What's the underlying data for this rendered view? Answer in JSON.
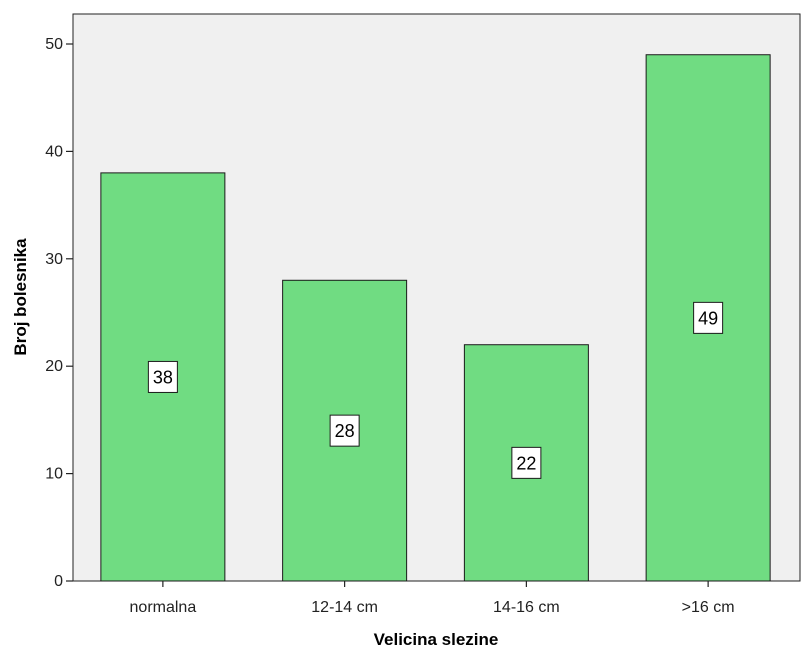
{
  "chart_data": {
    "type": "bar",
    "categories": [
      "normalna",
      "12-14 cm",
      "14-16 cm",
      ">16 cm"
    ],
    "values": [
      38,
      28,
      22,
      49
    ],
    "data_labels": [
      "38",
      "28",
      "22",
      "49"
    ],
    "xlabel": "Velicina slezine",
    "ylabel": "Broj bolesnika",
    "ylim": [
      0,
      50
    ],
    "yticks": [
      0,
      10,
      20,
      30,
      40,
      50
    ],
    "ytick_labels": [
      "0",
      "10",
      "20",
      "30",
      "40",
      "50"
    ],
    "grid": false,
    "colors": {
      "bar": "#70dc82",
      "bar_stroke": "#1a1a1a",
      "plot_background": "#f0f0f0",
      "axis": "#222222"
    }
  }
}
